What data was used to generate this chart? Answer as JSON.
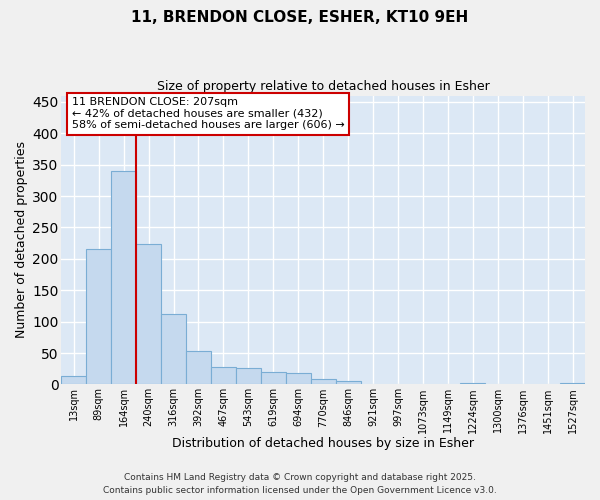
{
  "title1": "11, BRENDON CLOSE, ESHER, KT10 9EH",
  "title2": "Size of property relative to detached houses in Esher",
  "xlabel": "Distribution of detached houses by size in Esher",
  "ylabel": "Number of detached properties",
  "categories": [
    "13sqm",
    "89sqm",
    "164sqm",
    "240sqm",
    "316sqm",
    "392sqm",
    "467sqm",
    "543sqm",
    "619sqm",
    "694sqm",
    "770sqm",
    "846sqm",
    "921sqm",
    "997sqm",
    "1073sqm",
    "1149sqm",
    "1224sqm",
    "1300sqm",
    "1376sqm",
    "1451sqm",
    "1527sqm"
  ],
  "values": [
    14,
    216,
    340,
    224,
    112,
    54,
    27,
    26,
    20,
    18,
    9,
    5,
    0,
    0,
    0,
    0,
    3,
    0,
    0,
    0,
    3
  ],
  "bar_color": "#c5d9ee",
  "bar_edge_color": "#7aadd4",
  "background_color": "#dce8f5",
  "grid_color": "#ffffff",
  "vline_color": "#cc0000",
  "vline_position": 3,
  "annotation_text": "11 BRENDON CLOSE: 207sqm\n← 42% of detached houses are smaller (432)\n58% of semi-detached houses are larger (606) →",
  "annotation_box_edge_color": "#cc0000",
  "ylim": [
    0,
    460
  ],
  "yticks": [
    0,
    50,
    100,
    150,
    200,
    250,
    300,
    350,
    400,
    450
  ],
  "footer1": "Contains HM Land Registry data © Crown copyright and database right 2025.",
  "footer2": "Contains public sector information licensed under the Open Government Licence v3.0.",
  "fig_bg": "#f0f0f0"
}
